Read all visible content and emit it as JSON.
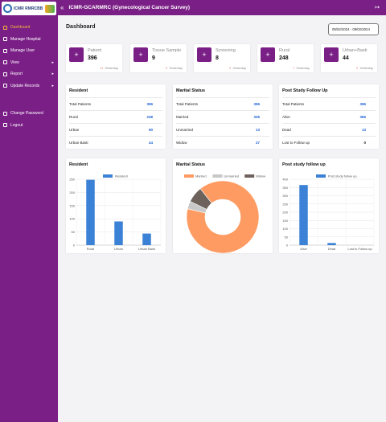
{
  "app": {
    "logo_text": "ICMR RMRCBB",
    "title": "ICMR-GCARMRC (Gynecological Cancer Survey)"
  },
  "sidebar": {
    "items": [
      {
        "label": "Dashboard",
        "icon": "grid-icon"
      },
      {
        "label": "Manage Hospital",
        "icon": "building-icon"
      },
      {
        "label": "Manage User",
        "icon": "user-icon"
      },
      {
        "label": "View",
        "icon": "eye-icon"
      },
      {
        "label": "Report",
        "icon": "file-icon"
      },
      {
        "label": "Update Records",
        "icon": "edit-icon"
      },
      {
        "label": "Change Password",
        "icon": "key-icon"
      },
      {
        "label": "Logout",
        "icon": "logout-icon"
      }
    ]
  },
  "page": {
    "title": "Dashboard",
    "date_range": "09/02/2024 - 09/02/2024"
  },
  "stats": [
    {
      "label": "Patient",
      "value": "396",
      "yesterday_count": "11",
      "yesterday_label": "Yesterday"
    },
    {
      "label": "Tissue Sample",
      "value": "9",
      "yesterday_count": "0",
      "yesterday_label": "Yesterday"
    },
    {
      "label": "Screening",
      "value": "8",
      "yesterday_count": "0",
      "yesterday_label": "Yesterday"
    },
    {
      "label": "Rural",
      "value": "248",
      "yesterday_count": "7",
      "yesterday_label": "Yesterday"
    },
    {
      "label": "Urban+Basti",
      "value": "44",
      "yesterday_count": "0",
      "yesterday_label": "Yesterday"
    }
  ],
  "tables": {
    "resident": {
      "title": "Resident",
      "rows": [
        {
          "label": "Total Patients",
          "value": "396"
        },
        {
          "label": "Rural",
          "value": "248"
        },
        {
          "label": "Urban",
          "value": "90"
        },
        {
          "label": "Urban Basti",
          "value": "44"
        }
      ]
    },
    "marital": {
      "title": "Marital Status",
      "rows": [
        {
          "label": "Total Patients",
          "value": "396"
        },
        {
          "label": "Married",
          "value": "335"
        },
        {
          "label": "Unmarried",
          "value": "13"
        },
        {
          "label": "Widow",
          "value": "27"
        }
      ]
    },
    "followup": {
      "title": "Post Study Follow Up",
      "rows": [
        {
          "label": "Total Patients",
          "value": "396"
        },
        {
          "label": "Alive",
          "value": "365"
        },
        {
          "label": "Dead",
          "value": "13"
        },
        {
          "label": "Lost to Follow up",
          "value": "0"
        }
      ]
    }
  },
  "chart_data": [
    {
      "type": "bar",
      "title": "Resident",
      "categories": [
        "Rural",
        "Urban",
        "Urban Basti"
      ],
      "series": [
        {
          "name": "Resident",
          "values": [
            248,
            90,
            44
          ]
        }
      ],
      "ylim": [
        0,
        250
      ],
      "yticks": [
        0,
        50,
        100,
        150,
        200,
        250
      ],
      "color": "#3b82d6",
      "grid": true,
      "legend": "top-center"
    },
    {
      "type": "pie",
      "title": "Marital Status",
      "labels": [
        "Married",
        "Unmarried",
        "Widow"
      ],
      "values": [
        335,
        13,
        27
      ],
      "colors": [
        "#fd9b62",
        "#c8c8c8",
        "#6e625c"
      ],
      "legend": "top-center"
    },
    {
      "type": "bar",
      "title": "Post study follow up",
      "categories": [
        "Alive",
        "Dead",
        "Lost to Follow up"
      ],
      "series": [
        {
          "name": "Post study follow up",
          "values": [
            365,
            13,
            0
          ]
        }
      ],
      "ylim": [
        0,
        400
      ],
      "yticks": [
        0,
        50,
        100,
        150,
        200,
        250,
        300,
        350,
        400
      ],
      "color": "#3b82d6",
      "grid": true,
      "legend": "top-center"
    }
  ]
}
